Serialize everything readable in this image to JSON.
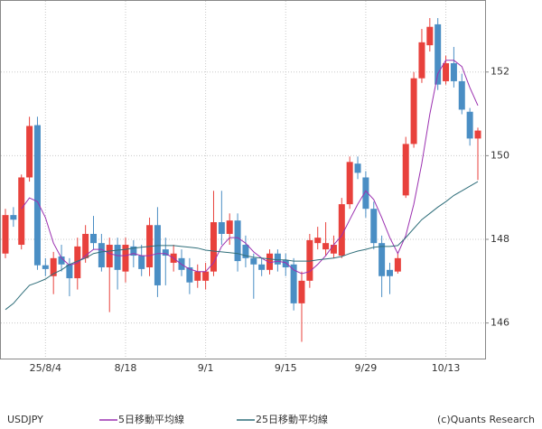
{
  "chart_data": {
    "type": "candlestick",
    "symbol": "USDJPY",
    "credit": "(c)Quants Research",
    "categories": [
      null,
      null,
      null,
      null,
      null,
      "25/8/4",
      null,
      null,
      null,
      null,
      null,
      null,
      null,
      null,
      null,
      "8/18",
      null,
      null,
      null,
      null,
      null,
      null,
      null,
      null,
      null,
      "9/1",
      null,
      null,
      null,
      null,
      null,
      null,
      null,
      null,
      null,
      "9/15",
      null,
      null,
      null,
      null,
      null,
      null,
      null,
      null,
      null,
      "9/29",
      null,
      null,
      null,
      null,
      null,
      null,
      null,
      null,
      null,
      "10/13",
      null,
      null,
      null,
      null
    ],
    "open": [
      147.66,
      148.58,
      147.87,
      149.48,
      150.73,
      147.38,
      147.12,
      147.59,
      147.4,
      147.07,
      147.55,
      148.13,
      147.91,
      147.33,
      147.87,
      147.23,
      147.83,
      147.61,
      147.33,
      148.34,
      147.76,
      147.44,
      147.55,
      147.33,
      147.01,
      147.01,
      147.23,
      148.41,
      148.13,
      148.45,
      147.87,
      147.55,
      147.4,
      147.27,
      147.66,
      147.5,
      147.4,
      146.47,
      147.01,
      147.91,
      147.76,
      147.66,
      147.61,
      148.84,
      149.81,
      149.48,
      148.73,
      147.91,
      147.27,
      147.23,
      149.05,
      150.28,
      151.85,
      152.64,
      153.14,
      151.78,
      152.21,
      151.78,
      151.05,
      150.41
    ],
    "high": [
      148.73,
      148.77,
      149.55,
      150.93,
      150.93,
      147.55,
      147.7,
      147.87,
      147.55,
      148.04,
      148.34,
      148.56,
      148.13,
      148.04,
      148.04,
      148.04,
      147.98,
      147.87,
      148.52,
      148.77,
      148.04,
      147.87,
      147.76,
      147.55,
      147.4,
      147.44,
      149.16,
      149.16,
      148.62,
      148.62,
      148.09,
      147.66,
      147.55,
      147.76,
      147.76,
      147.66,
      147.55,
      147.23,
      148.13,
      148.3,
      148.41,
      148.09,
      148.99,
      149.98,
      149.98,
      149.63,
      148.9,
      148.09,
      147.44,
      147.7,
      150.45,
      152.0,
      153.03,
      153.29,
      153.29,
      152.39,
      152.6,
      151.96,
      151.14,
      150.67
    ],
    "low": [
      147.55,
      148.3,
      147.76,
      149.38,
      147.27,
      147.12,
      146.69,
      147.23,
      146.64,
      146.8,
      147.44,
      147.76,
      147.23,
      146.26,
      146.8,
      146.97,
      147.33,
      147.12,
      147.12,
      146.62,
      146.9,
      147.23,
      147.12,
      146.69,
      146.84,
      146.8,
      147.12,
      147.87,
      147.87,
      147.23,
      147.33,
      146.58,
      147.12,
      147.16,
      147.23,
      147.12,
      146.3,
      145.55,
      146.84,
      147.76,
      147.61,
      147.55,
      147.55,
      148.73,
      149.44,
      148.52,
      147.76,
      146.62,
      146.69,
      147.18,
      148.99,
      150.19,
      151.74,
      152.49,
      151.57,
      151.7,
      151.63,
      150.99,
      150.24,
      149.42
    ],
    "close": [
      148.58,
      148.47,
      149.48,
      150.71,
      147.38,
      147.29,
      147.55,
      147.4,
      147.07,
      147.83,
      148.13,
      147.91,
      147.33,
      147.87,
      147.27,
      147.87,
      147.61,
      147.29,
      148.34,
      146.9,
      147.61,
      147.66,
      147.27,
      146.97,
      147.23,
      147.23,
      148.41,
      148.13,
      148.45,
      147.48,
      147.55,
      147.4,
      147.27,
      147.66,
      147.4,
      147.33,
      146.47,
      147.01,
      147.98,
      148.04,
      147.91,
      147.87,
      148.84,
      149.85,
      149.59,
      148.73,
      147.91,
      147.12,
      147.12,
      147.55,
      150.28,
      151.85,
      152.71,
      153.08,
      151.7,
      152.21,
      151.78,
      151.1,
      150.41,
      150.6
    ],
    "up_color": "#e8413c",
    "down_color": "#4a8ec4",
    "lines": [
      {
        "name": "5日移動平均線",
        "color": "#9b30b0",
        "values": [
          null,
          null,
          148.73,
          148.99,
          148.9,
          148.52,
          147.91,
          147.55,
          147.38,
          147.44,
          147.61,
          147.76,
          147.76,
          147.66,
          147.61,
          147.61,
          147.66,
          147.61,
          147.61,
          147.66,
          147.66,
          147.55,
          147.4,
          147.29,
          147.23,
          147.23,
          147.44,
          147.83,
          148.04,
          148.04,
          147.91,
          147.7,
          147.55,
          147.44,
          147.48,
          147.44,
          147.27,
          147.18,
          147.23,
          147.4,
          147.61,
          147.87,
          148.09,
          148.47,
          148.84,
          149.16,
          148.95,
          148.52,
          148.04,
          147.66,
          148.09,
          148.84,
          149.81,
          150.99,
          151.96,
          152.28,
          152.28,
          152.13,
          151.63,
          151.2
        ]
      },
      {
        "name": "25日移動平均線",
        "color": "#2f6e7a",
        "values": [
          146.32,
          146.47,
          146.69,
          146.9,
          146.97,
          147.05,
          147.18,
          147.27,
          147.4,
          147.48,
          147.55,
          147.66,
          147.7,
          147.72,
          147.74,
          147.76,
          147.79,
          147.81,
          147.83,
          147.85,
          147.85,
          147.85,
          147.83,
          147.81,
          147.79,
          147.74,
          147.72,
          147.7,
          147.68,
          147.66,
          147.61,
          147.57,
          147.55,
          147.53,
          147.51,
          147.51,
          147.48,
          147.48,
          147.48,
          147.51,
          147.53,
          147.55,
          147.59,
          147.66,
          147.72,
          147.76,
          147.81,
          147.83,
          147.83,
          147.85,
          148.04,
          148.26,
          148.47,
          148.62,
          148.77,
          148.9,
          149.05,
          149.16,
          149.27,
          149.38
        ]
      }
    ],
    "ylim": [
      145.15,
      153.7
    ],
    "yticks": [
      146,
      148,
      150,
      152
    ],
    "grid": true,
    "legend": "bottom"
  }
}
